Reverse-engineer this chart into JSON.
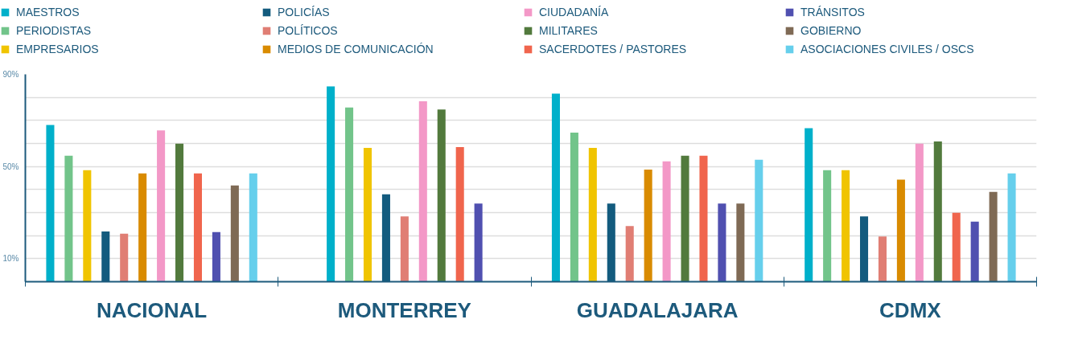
{
  "chart_data": {
    "type": "bar",
    "categories": [
      "NACIONAL",
      "MONTERREY",
      "GUADALAJARA",
      "CDMX"
    ],
    "series": [
      {
        "name": "MAESTROS",
        "color": "#00b0ca",
        "values": [
          68,
          84.8,
          81.6,
          66.6
        ]
      },
      {
        "name": "PERIODISTAS",
        "color": "#72c48a",
        "values": [
          54.7,
          75.6,
          64.7,
          48.4
        ]
      },
      {
        "name": "EMPRESARIOS",
        "color": "#f0c400",
        "values": [
          48.4,
          58.1,
          58.1,
          48.4
        ]
      },
      {
        "name": "POLICÍAS",
        "color": "#135b7e",
        "values": [
          21.8,
          37.9,
          33.9,
          28.3
        ]
      },
      {
        "name": "POLÍTICOS",
        "color": "#e07e74",
        "values": [
          20.8,
          28.3,
          24.2,
          19.6
        ]
      },
      {
        "name": "MEDIOS DE COMUNICACIÓN",
        "color": "#d98b00",
        "values": [
          47,
          null,
          48.7,
          44.3
        ]
      },
      {
        "name": "CIUDADANÍA",
        "color": "#f398c7",
        "values": [
          65.7,
          78.3,
          52.2,
          59.9
        ]
      },
      {
        "name": "MILITARES",
        "color": "#527a3d",
        "values": [
          59.9,
          74.7,
          54.7,
          60.9
        ]
      },
      {
        "name": "SACERDOTES / PASTORES",
        "color": "#f0654d",
        "values": [
          47,
          58.4,
          54.7,
          29.9
        ]
      },
      {
        "name": "TRÁNSITOS",
        "color": "#5050b0",
        "values": [
          21.5,
          33.9,
          33.9,
          26.1
        ]
      },
      {
        "name": "GOBIERNO",
        "color": "#7f6a55",
        "values": [
          41.8,
          null,
          33.9,
          39
        ]
      },
      {
        "name": "ASOCIACIONES CIVILES / OSCS",
        "color": "#66cfec",
        "values": [
          47,
          null,
          52.9,
          47
        ]
      }
    ],
    "ylim": [
      0,
      90
    ],
    "yticks": [
      {
        "value": 10,
        "label": "10%"
      },
      {
        "value": 20,
        "label": null
      },
      {
        "value": 30,
        "label": null
      },
      {
        "value": 40,
        "label": null
      },
      {
        "value": 50,
        "label": "50%"
      },
      {
        "value": 60,
        "label": null
      },
      {
        "value": 70,
        "label": null
      },
      {
        "value": 80,
        "label": null
      },
      {
        "value": 90,
        "label": "90%"
      }
    ],
    "grid": "y",
    "legend": "top"
  }
}
